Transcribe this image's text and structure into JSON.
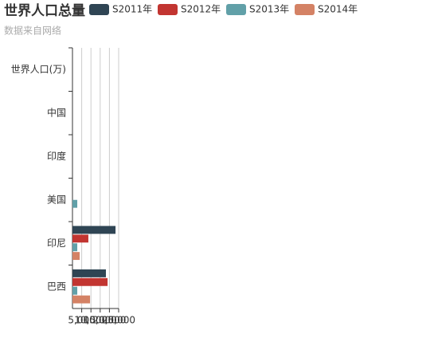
{
  "chart_data": {
    "type": "bar",
    "orientation": "horizontal",
    "title": "世界人口总量",
    "subtitle": "数据来自网络",
    "categories": [
      "巴西",
      "印尼",
      "美国",
      "印度",
      "中国",
      "世界人口(万)"
    ],
    "series": [
      {
        "name": "S2011年",
        "color": "#2f4554",
        "values": [
          18100,
          23300,
          0,
          0,
          0,
          0
        ]
      },
      {
        "name": "S2012年",
        "color": "#c23531",
        "values": [
          19000,
          8600,
          0,
          0,
          0,
          0
        ]
      },
      {
        "name": "S2013年",
        "color": "#61a0a8",
        "values": [
          2600,
          2600,
          2600,
          0,
          0,
          0
        ]
      },
      {
        "name": "S2014年",
        "color": "#d48265",
        "values": [
          9500,
          3900,
          0,
          0,
          0,
          0
        ]
      }
    ],
    "xlim": [
      0,
      25000
    ],
    "xticks": [
      {
        "value": 5000,
        "label": "5,000"
      },
      {
        "value": 10000,
        "label": "10,000"
      },
      {
        "value": 15000,
        "label": "15,000"
      },
      {
        "value": 20000,
        "label": "20,000"
      },
      {
        "value": 25000,
        "label": "25,000"
      }
    ],
    "grid": true
  }
}
